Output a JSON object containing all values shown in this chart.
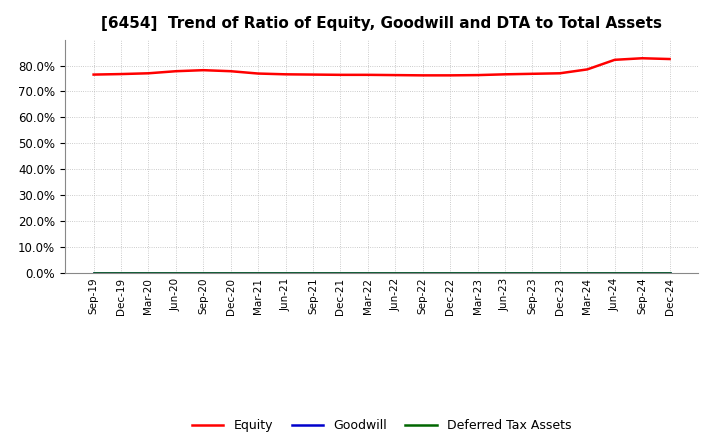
{
  "title": "[6454]  Trend of Ratio of Equity, Goodwill and DTA to Total Assets",
  "title_fontsize": 11,
  "background_color": "#ffffff",
  "plot_background_color": "#ffffff",
  "x_labels": [
    "Sep-19",
    "Dec-19",
    "Mar-20",
    "Jun-20",
    "Sep-20",
    "Dec-20",
    "Mar-21",
    "Jun-21",
    "Sep-21",
    "Dec-21",
    "Mar-22",
    "Jun-22",
    "Sep-22",
    "Dec-22",
    "Mar-23",
    "Jun-23",
    "Sep-23",
    "Dec-23",
    "Mar-24",
    "Jun-24",
    "Sep-24",
    "Dec-24"
  ],
  "equity": [
    76.5,
    76.7,
    77.0,
    77.8,
    78.2,
    77.8,
    76.9,
    76.6,
    76.5,
    76.4,
    76.4,
    76.3,
    76.2,
    76.2,
    76.3,
    76.6,
    76.8,
    77.0,
    78.5,
    82.2,
    82.8,
    82.5
  ],
  "goodwill": [
    0.0,
    0.0,
    0.0,
    0.0,
    0.0,
    0.0,
    0.0,
    0.0,
    0.0,
    0.0,
    0.0,
    0.0,
    0.0,
    0.0,
    0.0,
    0.0,
    0.0,
    0.0,
    0.0,
    0.0,
    0.0,
    0.0
  ],
  "dta": [
    0.0,
    0.0,
    0.0,
    0.0,
    0.0,
    0.0,
    0.0,
    0.0,
    0.0,
    0.0,
    0.0,
    0.0,
    0.0,
    0.0,
    0.0,
    0.0,
    0.0,
    0.0,
    0.0,
    0.0,
    0.0,
    0.0
  ],
  "equity_color": "#ff0000",
  "goodwill_color": "#0000cc",
  "dta_color": "#006600",
  "ylim": [
    0,
    90
  ],
  "yticks": [
    0,
    10,
    20,
    30,
    40,
    50,
    60,
    70,
    80
  ],
  "legend_labels": [
    "Equity",
    "Goodwill",
    "Deferred Tax Assets"
  ],
  "grid_color": "#bbbbbb",
  "line_width": 1.8
}
